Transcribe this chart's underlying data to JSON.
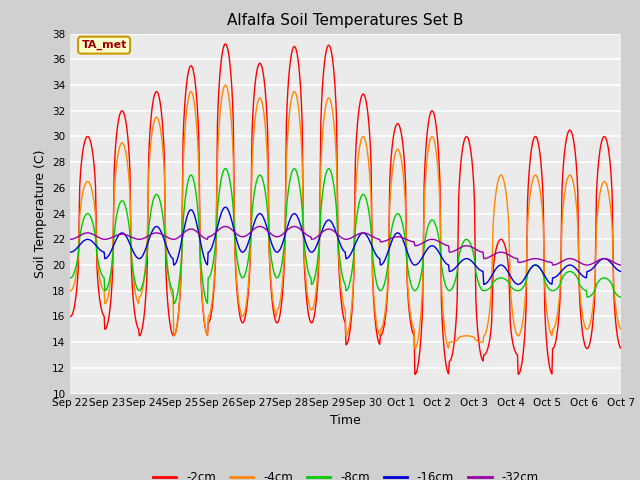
{
  "title": "Alfalfa Soil Temperatures Set B",
  "xlabel": "Time",
  "ylabel": "Soil Temperature (C)",
  "ylim": [
    10,
    38
  ],
  "yticks": [
    10,
    12,
    14,
    16,
    18,
    20,
    22,
    24,
    26,
    28,
    30,
    32,
    34,
    36,
    38
  ],
  "fig_bg_color": "#d0d0d0",
  "plot_bg_color": "#ebebeb",
  "annotation_label": "TA_met",
  "annotation_bg": "#ffffcc",
  "annotation_border": "#cc9900",
  "annotation_text_color": "#990000",
  "series_colors": [
    "#ff0000",
    "#ff8800",
    "#00cc00",
    "#0000dd",
    "#9900aa"
  ],
  "series_labels": [
    "-2cm",
    "-4cm",
    "-8cm",
    "-16cm",
    "-32cm"
  ],
  "x_tick_labels": [
    "Sep 22",
    "Sep 23",
    "Sep 24",
    "Sep 25",
    "Sep 26",
    "Sep 27",
    "Sep 28",
    "Sep 29",
    "Sep 30",
    "Oct 1",
    "Oct 2",
    "Oct 3",
    "Oct 4",
    "Oct 5",
    "Oct 6",
    "Oct 7"
  ],
  "peaks_2cm": [
    30,
    32,
    33.5,
    35.5,
    37.2,
    35.7,
    37.0,
    37.1,
    33.3,
    31.0,
    32.0,
    30.0,
    22.0,
    30.0,
    30.5,
    30.0
  ],
  "troughs_2cm": [
    16,
    15,
    14.5,
    14.5,
    15.5,
    15.5,
    15.5,
    15.5,
    13.8,
    14.5,
    11.5,
    12.5,
    13.0,
    11.5,
    13.5,
    13.5
  ],
  "peaks_4cm": [
    26.5,
    29.5,
    31.5,
    33.5,
    34.0,
    33.0,
    33.5,
    33.0,
    30.0,
    29.0,
    30.0,
    14.5,
    27.0,
    27.0,
    27.0,
    26.5
  ],
  "troughs_4cm": [
    18,
    17,
    17.5,
    14.5,
    16.0,
    16.0,
    16.5,
    16.5,
    14.5,
    15.0,
    13.5,
    14.0,
    14.5,
    14.5,
    15.0,
    15.0
  ],
  "peaks_8cm": [
    24,
    25,
    25.5,
    27,
    27.5,
    27,
    27.5,
    27.5,
    25.5,
    24,
    23.5,
    22,
    19,
    20,
    19.5,
    19
  ],
  "troughs_8cm": [
    19,
    18,
    18,
    17,
    19,
    19,
    19,
    18.5,
    18,
    18,
    18,
    18,
    18,
    18,
    18,
    17.5
  ],
  "peaks_16cm": [
    22,
    22.5,
    23,
    24.3,
    24.5,
    24.0,
    24.0,
    23.5,
    22.5,
    22.5,
    21.5,
    20.5,
    20.0,
    20.0,
    20.0,
    20.5
  ],
  "troughs_16cm": [
    21,
    20.5,
    20.5,
    20,
    21,
    21,
    21,
    21,
    20.5,
    20,
    20,
    19.5,
    18.5,
    18.5,
    19.0,
    19.5
  ],
  "peaks_32cm": [
    22.5,
    22.4,
    22.5,
    22.8,
    23.0,
    23.0,
    23.0,
    22.8,
    22.5,
    22.2,
    22.0,
    21.5,
    21.0,
    20.5,
    20.5,
    20.5
  ],
  "troughs_32cm": [
    22.0,
    22.0,
    22.0,
    22.0,
    22.2,
    22.2,
    22.2,
    22.0,
    22.0,
    21.8,
    21.5,
    21.0,
    20.5,
    20.2,
    20.0,
    20.0
  ]
}
